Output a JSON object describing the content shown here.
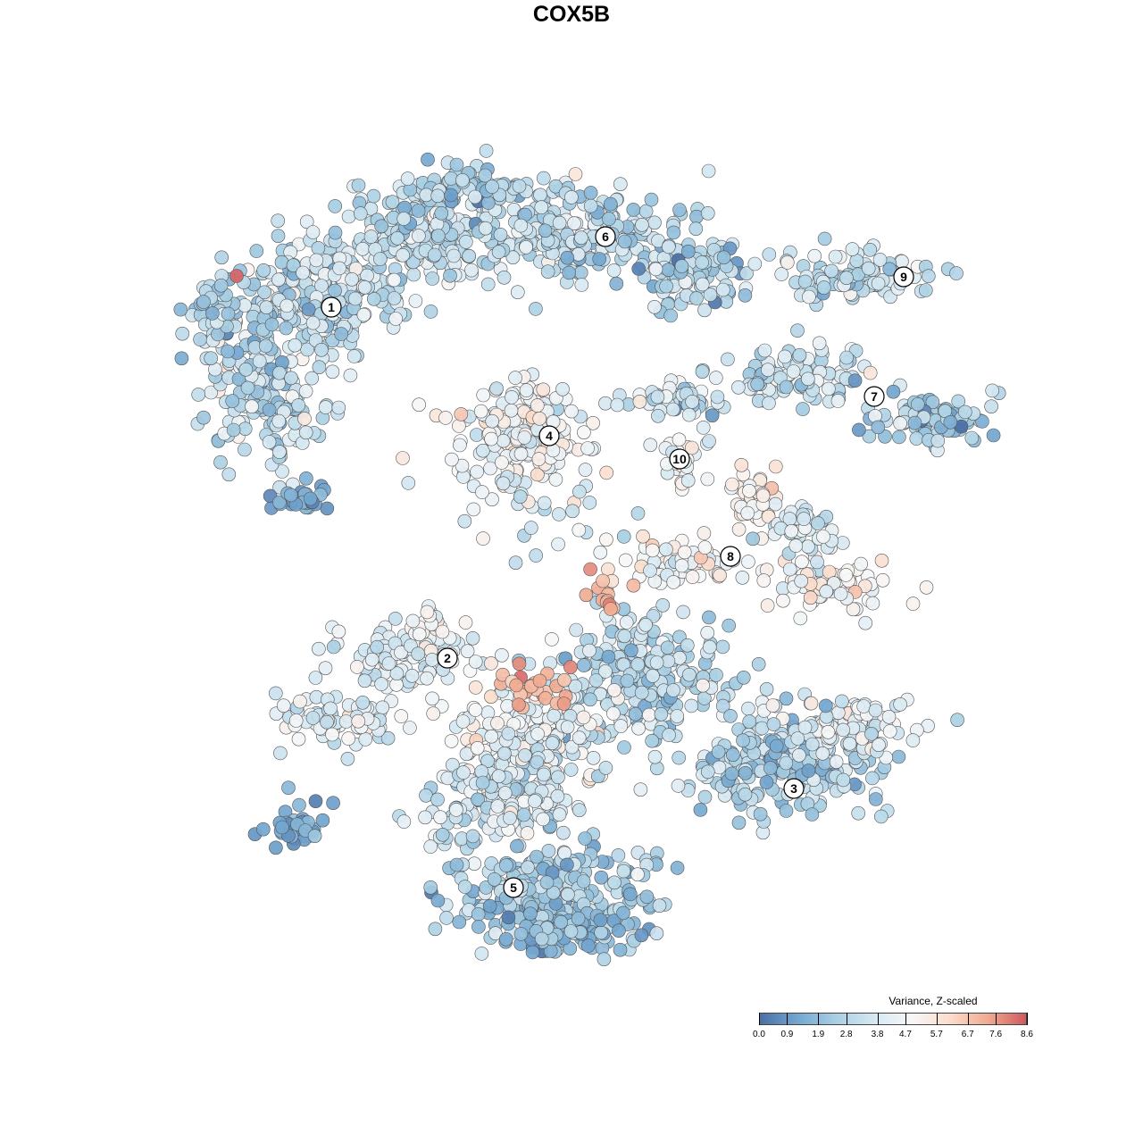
{
  "title": "COX5B",
  "chart_data": {
    "type": "scatter",
    "title": "COX5B",
    "color_scale": {
      "title": "Variance, Z-scaled",
      "min": 0.0,
      "max": 8.6,
      "ticks": [
        "0.0",
        "0.9",
        "1.9",
        "2.8",
        "3.8",
        "4.7",
        "5.7",
        "6.7",
        "7.6",
        "8.6"
      ],
      "tick_values": [
        0.0,
        0.9,
        1.9,
        2.8,
        3.8,
        4.7,
        5.7,
        6.7,
        7.6,
        8.6
      ],
      "colors": [
        "#4a6fa5",
        "#74a7d0",
        "#a8cfe3",
        "#d6e8f2",
        "#f7f7f7",
        "#fbdccb",
        "#f1aa90",
        "#d0585e"
      ]
    },
    "cluster_labels": [
      "1",
      "2",
      "3",
      "4",
      "5",
      "6",
      "7",
      "8",
      "9",
      "10"
    ],
    "x_axis_shown": false,
    "y_axis_shown": false,
    "grid": false,
    "legend_position": "bottom-right"
  },
  "colors": {
    "point_stroke": "#555555",
    "label_fill": "#ffffff",
    "label_stroke": "#000000"
  }
}
